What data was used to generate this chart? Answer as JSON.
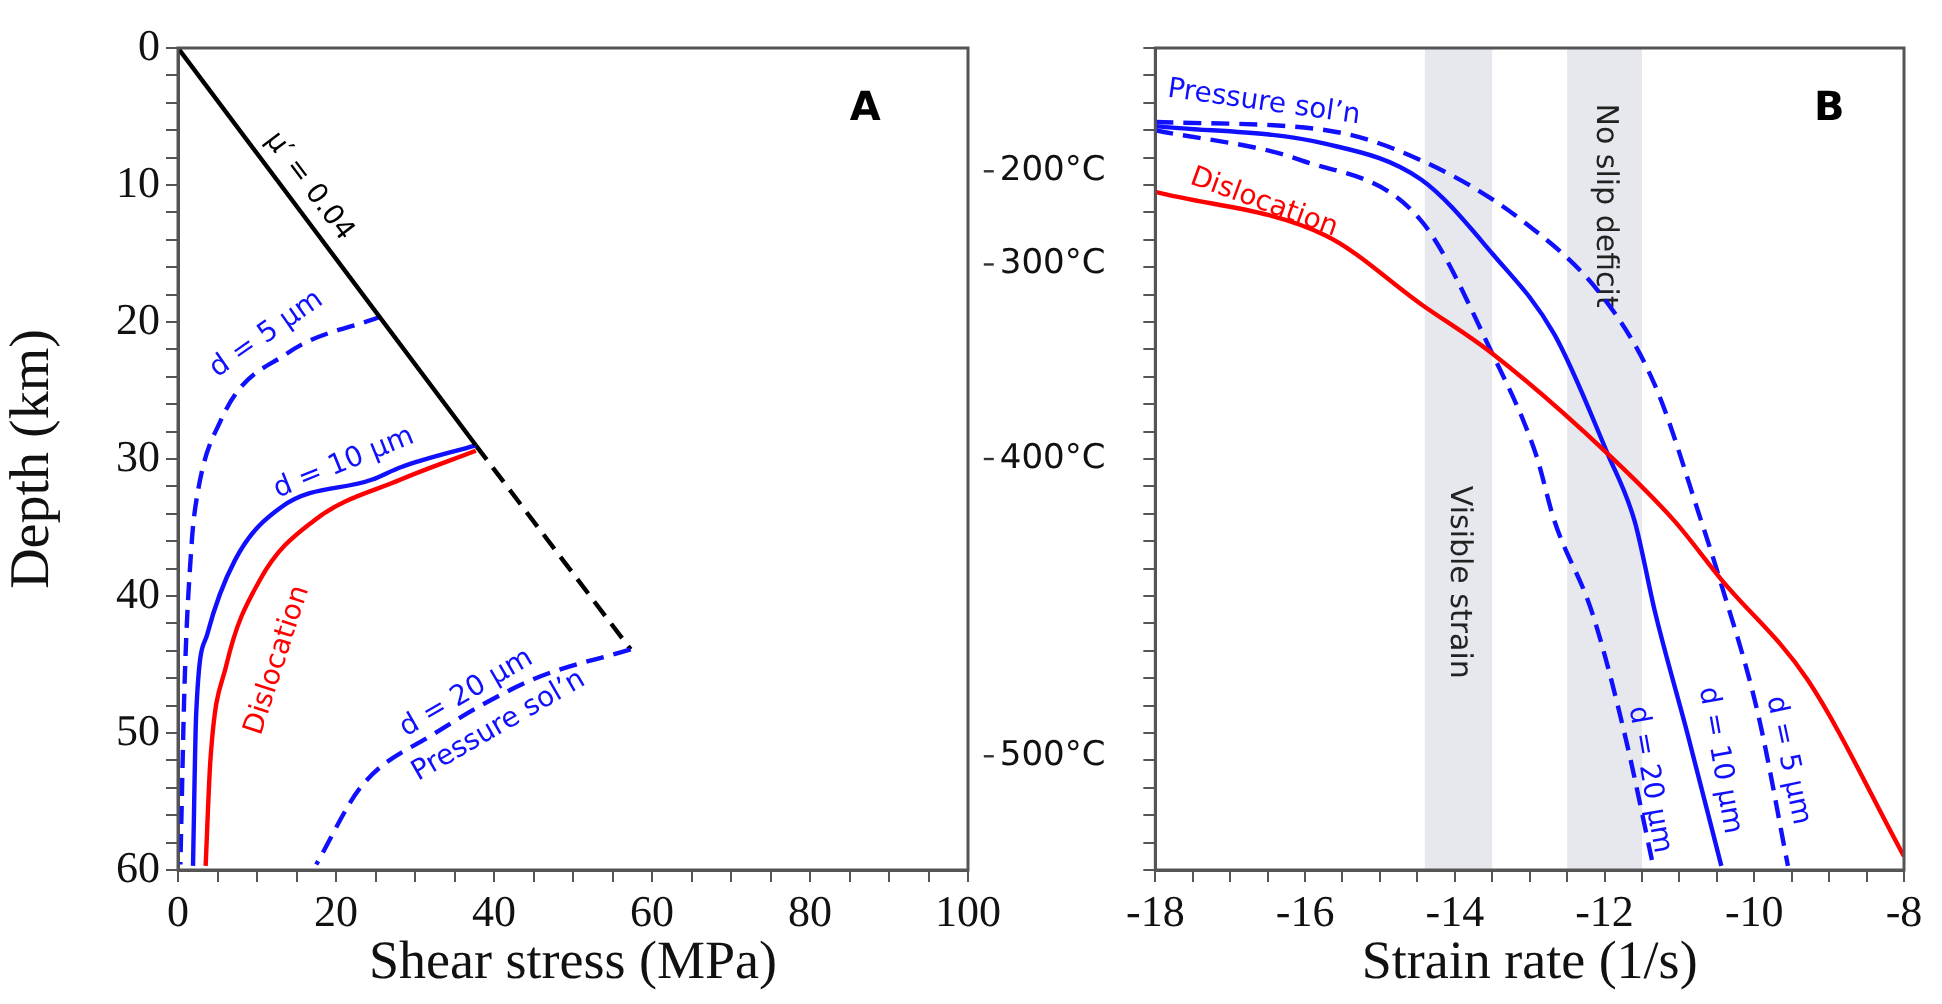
{
  "chart_data": [
    {
      "type": "line",
      "xlabel": "Shear stress (MPa)",
      "ylabel": "Depth (km)",
      "xlim": [
        0,
        100
      ],
      "xticks": [
        0,
        {
          "value": 5,
          "label": null
        },
        {
          "value": 10,
          "label": null
        },
        {
          "value": 15,
          "label": null
        },
        20,
        {
          "value": 25,
          "label": null
        },
        {
          "value": 30,
          "label": null
        },
        {
          "value": 35,
          "label": null
        },
        40,
        {
          "value": 45,
          "label": null
        },
        {
          "value": 50,
          "label": null
        },
        {
          "value": 55,
          "label": null
        },
        60,
        {
          "value": 65,
          "label": null
        },
        {
          "value": 70,
          "label": null
        },
        {
          "value": 75,
          "label": null
        },
        80,
        {
          "value": 85,
          "label": null
        },
        {
          "value": 90,
          "label": null
        },
        {
          "value": 95,
          "label": null
        },
        100
      ],
      "ylim": [
        60,
        0
      ],
      "yticks": [
        0,
        {
          "value": 2,
          "label": null
        },
        {
          "value": 4,
          "label": null
        },
        {
          "value": 6,
          "label": null
        },
        {
          "value": 8,
          "label": null
        },
        10,
        {
          "value": 12,
          "label": null
        },
        {
          "value": 14,
          "label": null
        },
        {
          "value": 16,
          "label": null
        },
        {
          "value": 18,
          "label": null
        },
        20,
        {
          "value": 22,
          "label": null
        },
        {
          "value": 24,
          "label": null
        },
        {
          "value": 26,
          "label": null
        },
        {
          "value": 28,
          "label": null
        },
        30,
        {
          "value": 32,
          "label": null
        },
        {
          "value": 34,
          "label": null
        },
        {
          "value": 36,
          "label": null
        },
        {
          "value": 38,
          "label": null
        },
        40,
        {
          "value": 42,
          "label": null
        },
        {
          "value": 44,
          "label": null
        },
        {
          "value": 46,
          "label": null
        },
        {
          "value": 48,
          "label": null
        },
        50,
        {
          "value": 52,
          "label": null
        },
        {
          "value": 54,
          "label": null
        },
        {
          "value": 56,
          "label": null
        },
        {
          "value": 58,
          "label": null
        },
        60
      ],
      "grid": false,
      "legend": false,
      "annotations": [
        "A",
        "Pressure sol’n",
        "200°C",
        "300°C",
        "400°C",
        "500°C"
      ],
      "series": [
        {
          "name": "μ′ = 0.04",
          "color": "#000000",
          "line_style": "solid",
          "x": [
            0,
            37.7
          ],
          "values": [
            0,
            29.0
          ]
        },
        {
          "name": "d = 5 µm",
          "color": "#1010ff",
          "line_style": "dashed",
          "x": [
            25.7,
            13.8,
            5.4,
            2.2,
            1.7,
            0.85,
            0.3
          ],
          "values": [
            19.6,
            22.3,
            27.2,
            33.5,
            36.4,
            46.1,
            59.6
          ]
        },
        {
          "name": "d = 10 µm",
          "color": "#1010ff",
          "line_style": "solid",
          "x": [
            37.7,
            28.2,
            24.6,
            13.1,
            7.2,
            3.7,
            2.3,
            1.9
          ],
          "values": [
            29.0,
            30.6,
            31.5,
            33.5,
            37.4,
            42.8,
            48.6,
            59.7
          ]
        },
        {
          "name": "Dislocation",
          "color": "#ff0000",
          "line_style": "solid",
          "x": [
            37.7,
            28.2,
            17.2,
            10.4,
            6.1,
            4.1,
            3.5
          ],
          "values": [
            29.4,
            31.5,
            34.5,
            38.8,
            45.1,
            52,
            59.7
          ]
        },
        {
          "name": "d = 20 µm",
          "color": "#1010ff",
          "line_style": "dashed",
          "x": [
            57.3,
            44.9,
            32.3,
            23.2,
            17.5
          ],
          "values": [
            43.9,
            46.1,
            50.1,
            53.9,
            59.6
          ]
        },
        {
          "color": "#000000",
          "line_style": "dashed",
          "x": [
            37.7,
            57.3
          ],
          "values": [
            29.0,
            43.9
          ]
        }
      ]
    },
    {
      "type": "line",
      "xlabel": "Strain rate (1/s)",
      "tick_labels": "x",
      "xlim": [
        -18,
        -8
      ],
      "xticks": [
        -18,
        {
          "value": -17.5,
          "label": null
        },
        {
          "value": -17,
          "label": null
        },
        {
          "value": -16.5,
          "label": null
        },
        -16,
        {
          "value": -15.5,
          "label": null
        },
        {
          "value": -15,
          "label": null
        },
        {
          "value": -14.5,
          "label": null
        },
        -14,
        {
          "value": -13.5,
          "label": null
        },
        {
          "value": -13,
          "label": null
        },
        {
          "value": -12.5,
          "label": null
        },
        -12,
        {
          "value": -11.5,
          "label": null
        },
        {
          "value": -11,
          "label": null
        },
        {
          "value": -10.5,
          "label": null
        },
        -10,
        {
          "value": -9.5,
          "label": null
        },
        {
          "value": -9,
          "label": null
        },
        {
          "value": -8.5,
          "label": null
        },
        -8
      ],
      "ylim": [
        60,
        0
      ],
      "yticks": [
        0,
        {
          "value": 2,
          "label": null
        },
        {
          "value": 4,
          "label": null
        },
        {
          "value": 6,
          "label": null
        },
        {
          "value": 8,
          "label": null
        },
        10,
        {
          "value": 12,
          "label": null
        },
        {
          "value": 14,
          "label": null
        },
        {
          "value": 16,
          "label": null
        },
        {
          "value": 18,
          "label": null
        },
        20,
        {
          "value": 22,
          "label": null
        },
        {
          "value": 24,
          "label": null
        },
        {
          "value": 26,
          "label": null
        },
        {
          "value": 28,
          "label": null
        },
        30,
        {
          "value": 32,
          "label": null
        },
        {
          "value": 34,
          "label": null
        },
        {
          "value": 36,
          "label": null
        },
        {
          "value": 38,
          "label": null
        },
        40,
        {
          "value": 42,
          "label": null
        },
        {
          "value": 44,
          "label": null
        },
        {
          "value": 46,
          "label": null
        },
        {
          "value": 48,
          "label": null
        },
        50,
        {
          "value": 52,
          "label": null
        },
        {
          "value": 54,
          "label": null
        },
        {
          "value": 56,
          "label": null
        },
        {
          "value": 58,
          "label": null
        },
        60
      ],
      "grid": false,
      "legend": false,
      "bands": [
        {
          "axis": "x",
          "from": -14.4,
          "to": -13.5,
          "label": "Visible strain",
          "color": "#e6e8ee"
        },
        {
          "axis": "x",
          "from": -12.5,
          "to": -11.5,
          "label": "No slip deficit",
          "color": "#e6e8ee"
        }
      ],
      "annotations": [
        "B",
        "Pressure sol’n"
      ],
      "series": [
        {
          "name": "Dislocation",
          "color": "#ff0000",
          "line_style": "solid",
          "x": [
            -18,
            -15.72,
            -14.45,
            -13.5,
            -11.96,
            -11.07,
            -10.44,
            -9.29,
            -8
          ],
          "values": [
            10.5,
            13.7,
            18.7,
            22.3,
            29.6,
            34.5,
            38.8,
            46.1,
            59
          ]
        },
        {
          "name": "d = 10 µm",
          "color": "#1010ff",
          "line_style": "solid",
          "x": [
            -18,
            -15.72,
            -14.45,
            -13.5,
            -12.67,
            -11.96,
            -11.6,
            -11.32,
            -10.89,
            -10.44
          ],
          "values": [
            5.7,
            7.0,
            9.6,
            15.0,
            20.9,
            29.6,
            34.5,
            41.3,
            50.1,
            59.7
          ]
        },
        {
          "name": "d = 20 µm",
          "color": "#1010ff",
          "line_style": "dashed",
          "x": [
            -18,
            -16.05,
            -14.45,
            -13.5,
            -12.92,
            -12.67,
            -12.16,
            -11.73,
            -11.35
          ],
          "values": [
            6.0,
            8.2,
            12.6,
            22.3,
            29.6,
            34.5,
            41.3,
            50.1,
            59.7
          ]
        },
        {
          "name": "d = 5 µm",
          "color": "#1010ff",
          "line_style": "dashed",
          "x": [
            -18,
            -15.72,
            -14.45,
            -13.1,
            -11.99,
            -11.32,
            -10.71,
            -10.46,
            -9.95,
            -9.55
          ],
          "values": [
            5.4,
            6.0,
            8.2,
            12.6,
            18.4,
            24.7,
            34.5,
            38.8,
            48.6,
            59.7
          ]
        }
      ]
    }
  ]
}
